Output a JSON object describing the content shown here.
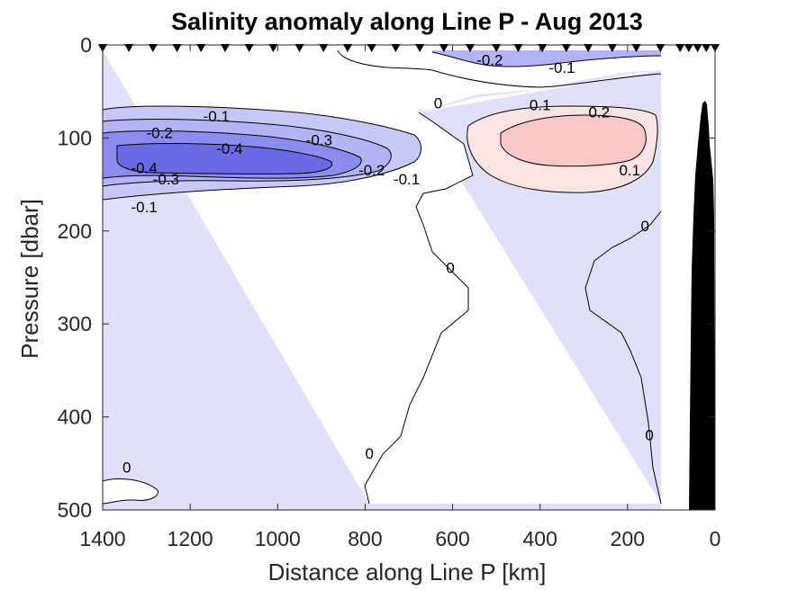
{
  "chart_data": {
    "type": "contour",
    "title": "Salinity anomaly along Line P - Aug 2013",
    "xlabel": "Distance along Line P [km]",
    "ylabel": "Pressure [dbar]",
    "xlim": [
      1400,
      0
    ],
    "ylim": [
      0,
      500
    ],
    "x_reversed": true,
    "y_reversed": true,
    "x_ticks": [
      "1400",
      "1200",
      "1000",
      "800",
      "600",
      "400",
      "200",
      "0"
    ],
    "y_ticks": [
      "0",
      "100",
      "200",
      "300",
      "400",
      "500"
    ],
    "x_tick_values": [
      1400,
      1200,
      1000,
      800,
      600,
      400,
      200,
      0
    ],
    "y_tick_values": [
      0,
      100,
      200,
      300,
      400,
      500
    ],
    "station_positions_km": [
      1400,
      1340,
      1285,
      1230,
      1175,
      1120,
      1065,
      1010,
      950,
      895,
      840,
      785,
      730,
      675,
      620,
      560,
      500,
      450,
      395,
      340,
      290,
      235,
      180,
      125,
      80,
      60,
      40,
      20,
      0
    ],
    "contour_levels": [
      -0.4,
      -0.3,
      -0.2,
      -0.1,
      0,
      0.1,
      0.2
    ],
    "colors": {
      "negative_fill_light": "#e0e0fb",
      "negative_fill_medium": "#b3b3f5",
      "negative_fill_strong": "#8c8cee",
      "negative_fill_deep": "#6a6ae6",
      "positive_fill_light": "#fde4e4",
      "positive_fill_medium": "#fbc8c8",
      "bathymetry": "#000000",
      "contour_line": "#000000"
    },
    "contour_labels": [
      {
        "text": "-0.1",
        "x": 350,
        "y": 30
      },
      {
        "text": "-0.2",
        "x": 515,
        "y": 22
      },
      {
        "text": "-0.1",
        "x": 1140,
        "y": 82
      },
      {
        "text": "-0.2",
        "x": 1270,
        "y": 100
      },
      {
        "text": "-0.4",
        "x": 1110,
        "y": 117
      },
      {
        "text": "-0.3",
        "x": 905,
        "y": 108
      },
      {
        "text": "-0.4",
        "x": 1305,
        "y": 138
      },
      {
        "text": "-0.3",
        "x": 1255,
        "y": 150
      },
      {
        "text": "-0.2",
        "x": 785,
        "y": 140
      },
      {
        "text": "-0.1",
        "x": 705,
        "y": 150
      },
      {
        "text": "-0.1",
        "x": 1305,
        "y": 180
      },
      {
        "text": "0",
        "x": 633,
        "y": 68
      },
      {
        "text": "0.1",
        "x": 400,
        "y": 70
      },
      {
        "text": "0.2",
        "x": 265,
        "y": 78
      },
      {
        "text": "0.1",
        "x": 195,
        "y": 140
      },
      {
        "text": "0",
        "x": 160,
        "y": 200
      },
      {
        "text": "0",
        "x": 605,
        "y": 245
      },
      {
        "text": "0",
        "x": 150,
        "y": 425
      },
      {
        "text": "0",
        "x": 790,
        "y": 445
      },
      {
        "text": "0",
        "x": 1345,
        "y": 460
      }
    ]
  }
}
